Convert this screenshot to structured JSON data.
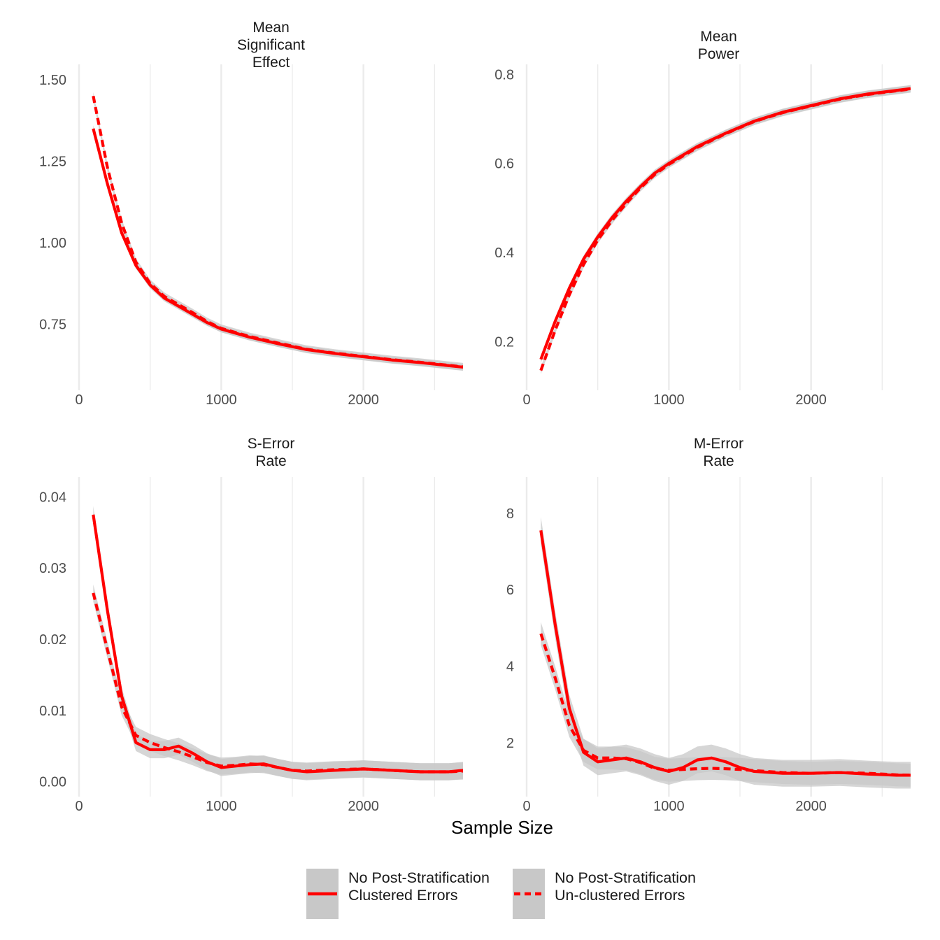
{
  "chart_data": {
    "type": "line",
    "xlabel": "Sample Size",
    "colors": {
      "line": "#ff0000",
      "ribbon": "#c8c8c8",
      "grid": "#ebebeb"
    },
    "legend": {
      "placement": "bottom",
      "entries": [
        {
          "label_line1": "No Post-Stratification",
          "label_line2": "Clustered Errors",
          "linetype": "solid"
        },
        {
          "label_line1": "No Post-Stratification",
          "label_line2": "Un-clustered Errors",
          "linetype": "dashed"
        }
      ]
    },
    "panels": [
      {
        "title": [
          "Mean",
          "Significant",
          "Effect"
        ],
        "xlim": [
          0,
          2700
        ],
        "ylim": [
          0.56,
          1.53
        ],
        "x_ticks": [
          0,
          1000,
          2000
        ],
        "x_tick_labels": [
          "0",
          "1000",
          "2000"
        ],
        "y_ticks": [
          0.75,
          1.0,
          1.25,
          1.5
        ],
        "y_tick_labels": [
          "0.75",
          "1.00",
          "1.25",
          "1.50"
        ],
        "series": [
          {
            "linetype": "solid",
            "x": [
              100,
              200,
              300,
              400,
              500,
              600,
              700,
              800,
              900,
              1000,
              1200,
              1400,
              1600,
              1800,
              2000,
              2200,
              2400,
              2700
            ],
            "y": [
              1.35,
              1.18,
              1.03,
              0.93,
              0.87,
              0.83,
              0.805,
              0.78,
              0.755,
              0.735,
              0.71,
              0.69,
              0.672,
              0.66,
              0.65,
              0.64,
              0.632,
              0.618
            ],
            "band": 0.01
          },
          {
            "linetype": "dashed",
            "x": [
              100,
              200,
              300,
              400,
              500,
              600,
              700,
              800,
              900,
              1000,
              1200,
              1400,
              1600,
              1800,
              2000,
              2200,
              2400,
              2700
            ],
            "y": [
              1.45,
              1.23,
              1.06,
              0.94,
              0.875,
              0.835,
              0.81,
              0.785,
              0.758,
              0.737,
              0.712,
              0.692,
              0.673,
              0.661,
              0.651,
              0.641,
              0.633,
              0.619
            ],
            "band": 0.012
          }
        ]
      },
      {
        "title": [
          "Mean",
          "Power"
        ],
        "xlim": [
          0,
          2700
        ],
        "ylim": [
          0.1,
          0.81
        ],
        "x_ticks": [
          0,
          1000,
          2000
        ],
        "x_tick_labels": [
          "0",
          "1000",
          "2000"
        ],
        "y_ticks": [
          0.2,
          0.4,
          0.6,
          0.8
        ],
        "y_tick_labels": [
          "0.2",
          "0.4",
          "0.6",
          "0.8"
        ],
        "series": [
          {
            "linetype": "solid",
            "x": [
              100,
              200,
              300,
              400,
              500,
              600,
              700,
              800,
              900,
              1000,
              1200,
              1400,
              1600,
              1800,
              2000,
              2200,
              2400,
              2700
            ],
            "y": [
              0.16,
              0.245,
              0.32,
              0.385,
              0.435,
              0.478,
              0.515,
              0.548,
              0.578,
              0.6,
              0.638,
              0.668,
              0.695,
              0.715,
              0.73,
              0.745,
              0.756,
              0.768
            ],
            "band": 0.008
          },
          {
            "linetype": "dashed",
            "x": [
              100,
              200,
              300,
              400,
              500,
              600,
              700,
              800,
              900,
              1000,
              1200,
              1400,
              1600,
              1800,
              2000,
              2200,
              2400,
              2700
            ],
            "y": [
              0.135,
              0.225,
              0.305,
              0.373,
              0.428,
              0.472,
              0.51,
              0.545,
              0.575,
              0.598,
              0.636,
              0.667,
              0.694,
              0.714,
              0.729,
              0.744,
              0.755,
              0.767
            ],
            "band": 0.008
          }
        ]
      },
      {
        "title": [
          "S-Error",
          "Rate"
        ],
        "xlim": [
          0,
          2700
        ],
        "ylim": [
          -0.0015,
          0.042
        ],
        "x_ticks": [
          0,
          1000,
          2000
        ],
        "x_tick_labels": [
          "0",
          "1000",
          "2000"
        ],
        "y_ticks": [
          0,
          0.01,
          0.02,
          0.03,
          0.04
        ],
        "y_tick_labels": [
          "0.00",
          "0.01",
          "0.02",
          "0.03",
          "0.04"
        ],
        "series": [
          {
            "linetype": "solid",
            "x": [
              100,
              200,
              300,
              400,
              500,
              600,
              700,
              800,
              900,
              1000,
              1100,
              1200,
              1300,
              1400,
              1500,
              1600,
              1800,
              2000,
              2200,
              2400,
              2600,
              2700
            ],
            "y": [
              0.0375,
              0.024,
              0.012,
              0.0055,
              0.0045,
              0.0045,
              0.005,
              0.004,
              0.0028,
              0.002,
              0.0022,
              0.0024,
              0.0025,
              0.002,
              0.0016,
              0.0014,
              0.0016,
              0.0018,
              0.0016,
              0.0014,
              0.0014,
              0.0016
            ],
            "band": 0.0012
          },
          {
            "linetype": "dashed",
            "x": [
              100,
              200,
              300,
              400,
              500,
              600,
              700,
              800,
              900,
              1000,
              1100,
              1200,
              1300,
              1400,
              1500,
              1600,
              1800,
              2000,
              2200,
              2400,
              2600,
              2700
            ],
            "y": [
              0.0265,
              0.0185,
              0.0105,
              0.0065,
              0.0055,
              0.0048,
              0.0042,
              0.0035,
              0.0027,
              0.0022,
              0.0023,
              0.0025,
              0.0024,
              0.002,
              0.0016,
              0.0015,
              0.0017,
              0.0018,
              0.0016,
              0.0014,
              0.0014,
              0.0015
            ],
            "band": 0.0012
          }
        ]
      },
      {
        "title": [
          "M-Error",
          "Rate"
        ],
        "xlim": [
          0,
          2700
        ],
        "ylim": [
          0.7,
          8.8
        ],
        "x_ticks": [
          0,
          1000,
          2000
        ],
        "x_tick_labels": [
          "0",
          "1000",
          "2000"
        ],
        "y_ticks": [
          2,
          4,
          6,
          8
        ],
        "y_tick_labels": [
          "2",
          "4",
          "6",
          "8"
        ],
        "series": [
          {
            "linetype": "solid",
            "x": [
              100,
              200,
              300,
              400,
              500,
              600,
              700,
              800,
              900,
              1000,
              1100,
              1200,
              1300,
              1400,
              1500,
              1600,
              1800,
              2000,
              2200,
              2400,
              2600,
              2700
            ],
            "y": [
              7.55,
              5.1,
              2.9,
              1.75,
              1.5,
              1.55,
              1.6,
              1.5,
              1.35,
              1.25,
              1.35,
              1.55,
              1.6,
              1.5,
              1.35,
              1.25,
              1.2,
              1.2,
              1.22,
              1.18,
              1.15,
              1.15
            ],
            "band": 0.35
          },
          {
            "linetype": "dashed",
            "x": [
              100,
              200,
              300,
              400,
              500,
              600,
              700,
              800,
              900,
              1000,
              1100,
              1200,
              1300,
              1400,
              1500,
              1600,
              1800,
              2000,
              2200,
              2400,
              2600,
              2700
            ],
            "y": [
              4.85,
              3.7,
              2.45,
              1.8,
              1.6,
              1.6,
              1.58,
              1.48,
              1.33,
              1.28,
              1.3,
              1.32,
              1.33,
              1.32,
              1.3,
              1.27,
              1.22,
              1.2,
              1.22,
              1.2,
              1.16,
              1.15
            ],
            "band": 0.3
          }
        ]
      }
    ]
  }
}
